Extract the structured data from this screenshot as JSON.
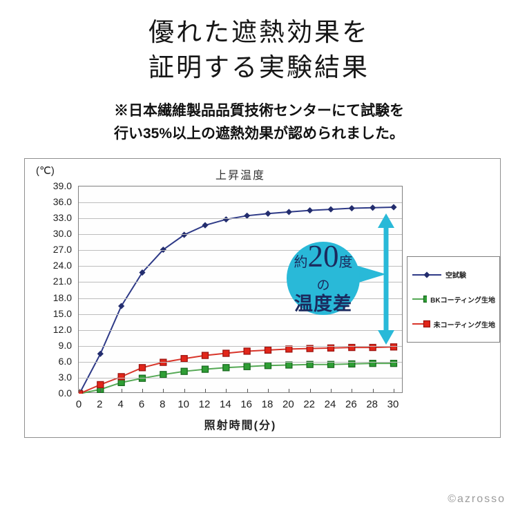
{
  "header": {
    "title_line1": "優れた遮熱効果を",
    "title_line2": "証明する実験結果",
    "note_line1": "※日本繊維製品品質技術センターにて試験を",
    "note_line2": "行い35%以上の遮熱効果が認められました。"
  },
  "chart": {
    "title": "上昇温度",
    "y_unit_label": "(℃)",
    "x_axis_label": "照射時間(分)",
    "annotation": {
      "prefix": "約",
      "big_number": "20",
      "suffix": "度",
      "middle": "の",
      "bottom": "温度差"
    }
  },
  "colors": {
    "accent_cyan": "#29b9d8",
    "annotation_text": "#1b2a5e",
    "grid": "#bdbdbd",
    "plot_border": "#7f7f7f",
    "series_blue": "#2e3a87",
    "series_green": "#55a955",
    "series_red": "#d8352a"
  },
  "chart_data": {
    "type": "line",
    "title": "上昇温度",
    "xlabel": "照射時間(分)",
    "ylabel": "(℃)",
    "x": [
      0,
      2,
      4,
      6,
      8,
      10,
      12,
      14,
      16,
      18,
      20,
      22,
      24,
      26,
      28,
      30
    ],
    "ylim": [
      0,
      39
    ],
    "ytick_step": 3,
    "grid": "horizontal-only",
    "legend_position": "right-inside",
    "series": [
      {
        "name": "空試験",
        "marker": "diamond",
        "line_color": "#2e3a87",
        "marker_color": "#232d6e",
        "marker_border": "#232d6e",
        "values": [
          0.0,
          7.5,
          16.5,
          22.8,
          27.1,
          29.9,
          31.7,
          32.8,
          33.5,
          33.9,
          34.2,
          34.5,
          34.7,
          34.9,
          35.0,
          35.1
        ]
      },
      {
        "name": "BKコーティング生地",
        "marker": "square",
        "line_color": "#55a955",
        "marker_color": "#2f9e35",
        "marker_border": "#1a6b20",
        "values": [
          0.0,
          0.8,
          2.1,
          2.9,
          3.6,
          4.2,
          4.6,
          4.9,
          5.1,
          5.3,
          5.4,
          5.5,
          5.5,
          5.6,
          5.7,
          5.7
        ]
      },
      {
        "name": "未コーティング生地",
        "marker": "square",
        "line_color": "#d8352a",
        "marker_color": "#e2261a",
        "marker_border": "#9c1410",
        "values": [
          0.0,
          1.7,
          3.2,
          4.9,
          5.9,
          6.6,
          7.2,
          7.6,
          8.0,
          8.2,
          8.4,
          8.5,
          8.6,
          8.7,
          8.7,
          8.8
        ]
      }
    ],
    "annotation": {
      "balloon_text": "約20度の温度差",
      "arrow": "double-headed vertical arrow between 空試験 and 未コーティング生地 at x=30"
    }
  },
  "watermark": "©azrosso"
}
